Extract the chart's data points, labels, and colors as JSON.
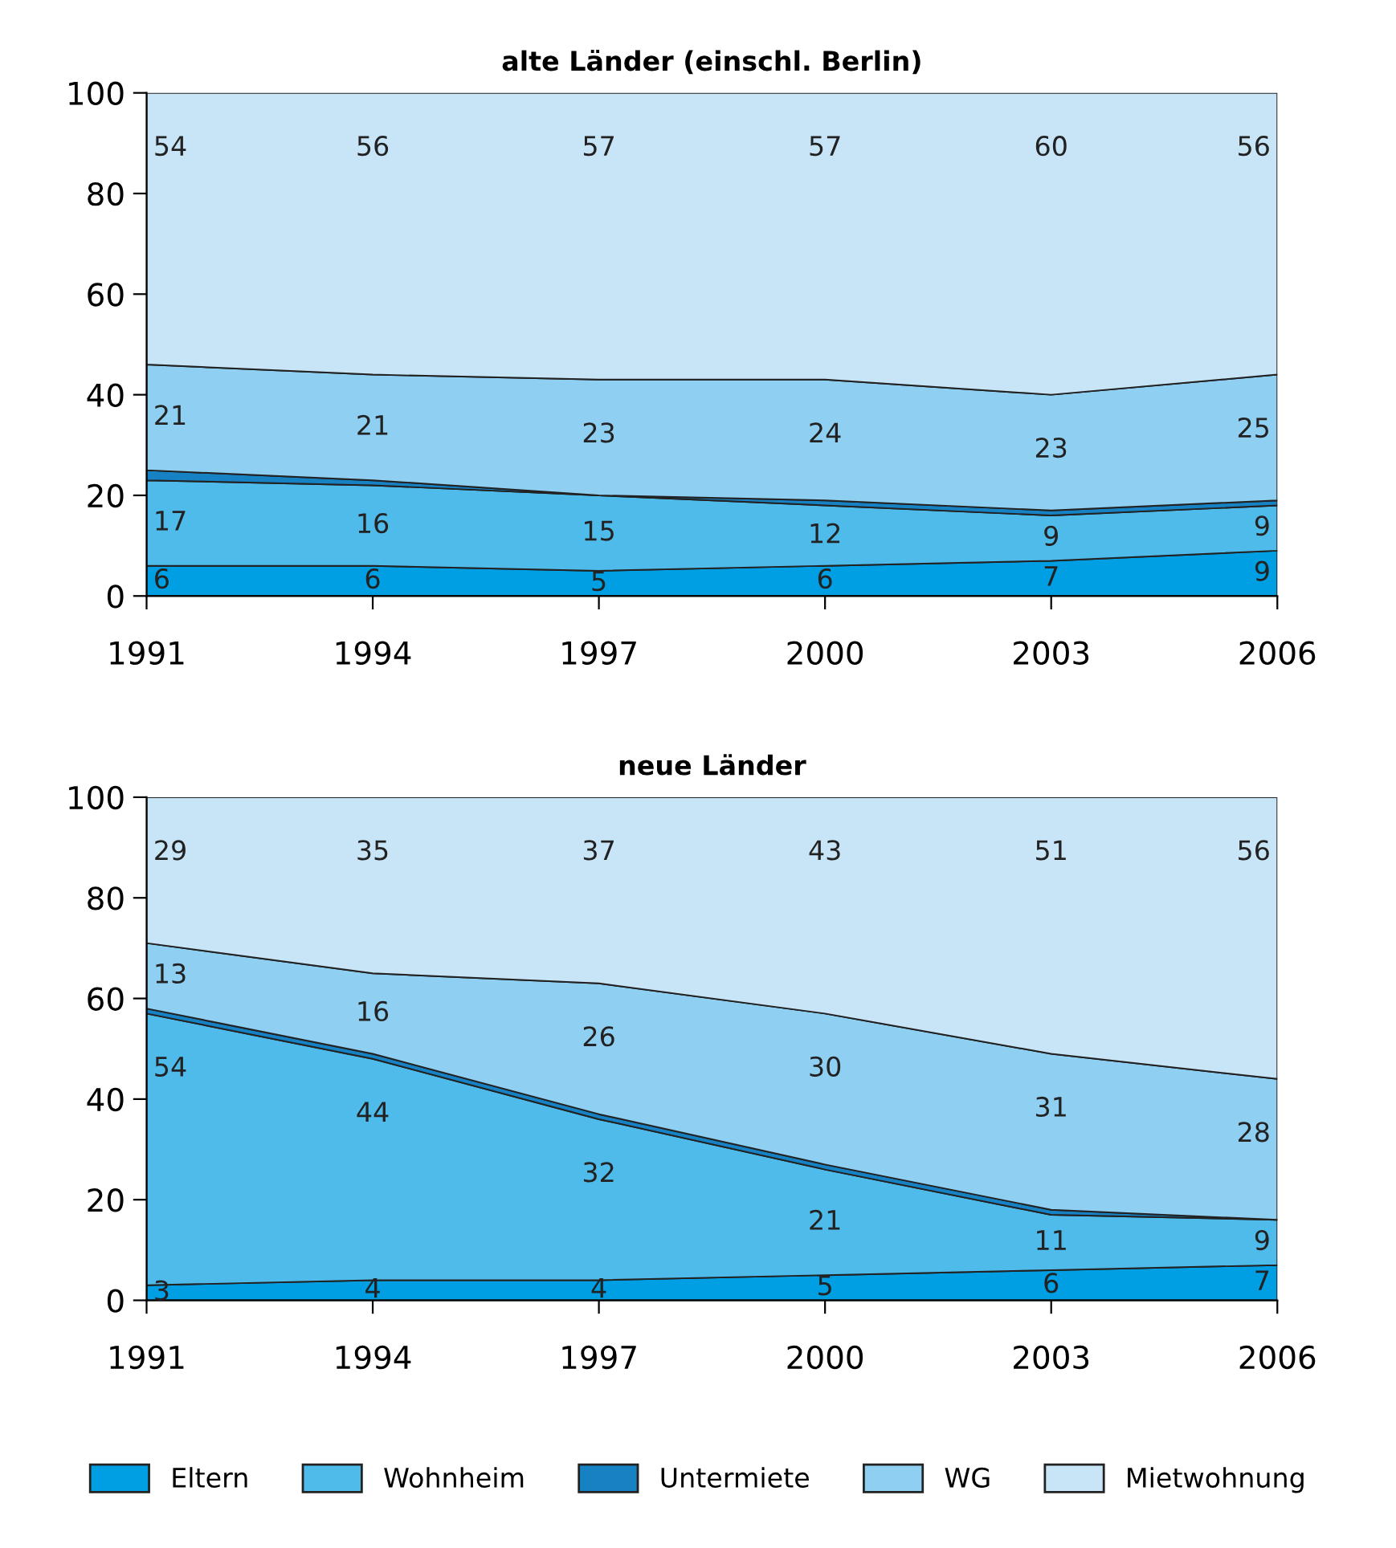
{
  "chart_data": [
    {
      "type": "area",
      "title": "alte Länder (einschl. Berlin)",
      "stacked": true,
      "x": [
        1991,
        1994,
        1997,
        2000,
        2003,
        2006
      ],
      "xlim": [
        1991,
        2006
      ],
      "xticks": [
        1991,
        1994,
        1997,
        2000,
        2003,
        2006
      ],
      "ylim": [
        0,
        100
      ],
      "yticks": [
        0,
        20,
        40,
        60,
        80,
        100
      ],
      "grid": false,
      "legend": "bottom",
      "series": [
        {
          "name": "Eltern",
          "color": "#009fe3",
          "values": [
            6,
            6,
            5,
            6,
            7,
            9
          ],
          "value_labels": [
            "6",
            "6",
            "5",
            "6",
            "7",
            "9"
          ]
        },
        {
          "name": "Wohnheim",
          "color": "#4fbbeb",
          "values": [
            17,
            16,
            15,
            12,
            9,
            9
          ],
          "value_labels": [
            "17",
            "16",
            "15",
            "12",
            "9",
            "9"
          ]
        },
        {
          "name": "Untermiete",
          "color": "#1682c4",
          "values": [
            2,
            1,
            0,
            1,
            1,
            1
          ],
          "value_labels": [
            null,
            null,
            null,
            null,
            null,
            null
          ]
        },
        {
          "name": "WG",
          "color": "#8fcff2",
          "values": [
            21,
            21,
            23,
            24,
            23,
            25
          ],
          "value_labels": [
            "21",
            "21",
            "23",
            "24",
            "23",
            "25"
          ]
        },
        {
          "name": "Mietwohnung",
          "color": "#c8e5f8",
          "values": [
            54,
            56,
            57,
            57,
            60,
            56
          ],
          "value_labels": [
            "54",
            "56",
            "57",
            "57",
            "60",
            "56"
          ]
        }
      ]
    },
    {
      "type": "area",
      "title": "neue Länder",
      "stacked": true,
      "x": [
        1991,
        1994,
        1997,
        2000,
        2003,
        2006
      ],
      "xlim": [
        1991,
        2006
      ],
      "xticks": [
        1991,
        1994,
        1997,
        2000,
        2003,
        2006
      ],
      "ylim": [
        0,
        100
      ],
      "yticks": [
        0,
        20,
        40,
        60,
        80,
        100
      ],
      "grid": false,
      "series": [
        {
          "name": "Eltern",
          "color": "#009fe3",
          "values": [
            3,
            4,
            4,
            5,
            6,
            7
          ],
          "value_labels": [
            "3",
            "4",
            "4",
            "5",
            "6",
            "7"
          ]
        },
        {
          "name": "Wohnheim",
          "color": "#4fbbeb",
          "values": [
            54,
            44,
            32,
            21,
            11,
            9
          ],
          "value_labels": [
            "54",
            "44",
            "32",
            "21",
            "11",
            "9"
          ]
        },
        {
          "name": "Untermiete",
          "color": "#1682c4",
          "values": [
            1,
            1,
            1,
            1,
            1,
            0
          ],
          "value_labels": [
            null,
            null,
            null,
            null,
            null,
            null
          ]
        },
        {
          "name": "WG",
          "color": "#8fcff2",
          "values": [
            13,
            16,
            26,
            30,
            31,
            28
          ],
          "value_labels": [
            "13",
            "16",
            "26",
            "30",
            "31",
            "28"
          ]
        },
        {
          "name": "Mietwohnung",
          "color": "#c8e5f8",
          "values": [
            29,
            35,
            37,
            43,
            51,
            56
          ],
          "value_labels": [
            "29",
            "35",
            "37",
            "43",
            "51",
            "56"
          ]
        }
      ]
    }
  ]
}
